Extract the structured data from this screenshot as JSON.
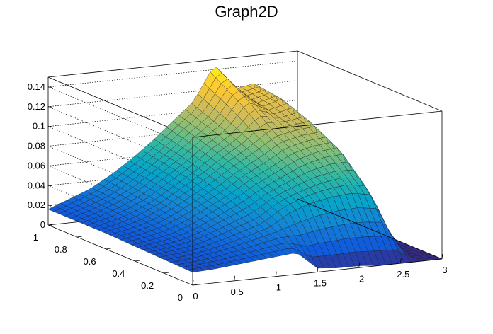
{
  "chart_data": {
    "type": "surface",
    "title": "Graph2D",
    "xlabel": "",
    "ylabel": "",
    "zlabel": "",
    "xlim": [
      0,
      3
    ],
    "ylim": [
      0,
      1
    ],
    "zlim": [
      0,
      0.15
    ],
    "x_ticks": [
      "0",
      "0.5",
      "1",
      "1.5",
      "2",
      "2.5",
      "3"
    ],
    "y_ticks": [
      "0",
      "0.2",
      "0.4",
      "0.6",
      "0.8",
      "1"
    ],
    "z_ticks": [
      "0",
      "0.02",
      "0.04",
      "0.06",
      "0.08",
      "0.1",
      "0.12",
      "0.14"
    ],
    "grid": true,
    "palette": [
      "#352a87",
      "#0f5cdd",
      "#1481d6",
      "#06a4ca",
      "#2eb7a4",
      "#87bf77",
      "#d1bb59",
      "#fec832",
      "#f9fb0e"
    ],
    "surface_notes": "Surface rises from about 0.015 at x=0 to a peak near 0.145 around x=2.0, y=1, with a second peak about 0.12 near x=2.5; it drops to zero for x > 2.7 and for x > 1.3 at low y.",
    "surface_x": [
      0,
      0.25,
      0.5,
      0.75,
      1.0,
      1.25,
      1.5,
      1.75,
      2.0,
      2.25,
      2.5,
      2.75,
      3.0
    ],
    "surface_y": [
      0,
      0.2,
      0.4,
      0.6,
      0.8,
      1.0
    ],
    "surface_z": [
      [
        0.013,
        0.014,
        0.016,
        0.018,
        0.02,
        0.022,
        0.004,
        0.002,
        0.002,
        0.0,
        0.0,
        0.0,
        0.0
      ],
      [
        0.014,
        0.016,
        0.019,
        0.024,
        0.03,
        0.036,
        0.05,
        0.058,
        0.062,
        0.064,
        0.06,
        0.0,
        0.0
      ],
      [
        0.015,
        0.018,
        0.022,
        0.03,
        0.04,
        0.05,
        0.062,
        0.072,
        0.082,
        0.088,
        0.09,
        0.0,
        0.0
      ],
      [
        0.016,
        0.02,
        0.026,
        0.036,
        0.048,
        0.06,
        0.074,
        0.086,
        0.1,
        0.104,
        0.106,
        0.0,
        0.0
      ],
      [
        0.016,
        0.022,
        0.03,
        0.04,
        0.054,
        0.068,
        0.084,
        0.098,
        0.125,
        0.112,
        0.118,
        0.0,
        0.0
      ],
      [
        0.016,
        0.024,
        0.032,
        0.044,
        0.058,
        0.074,
        0.092,
        0.11,
        0.145,
        0.118,
        0.122,
        0.0,
        0.0
      ]
    ]
  }
}
